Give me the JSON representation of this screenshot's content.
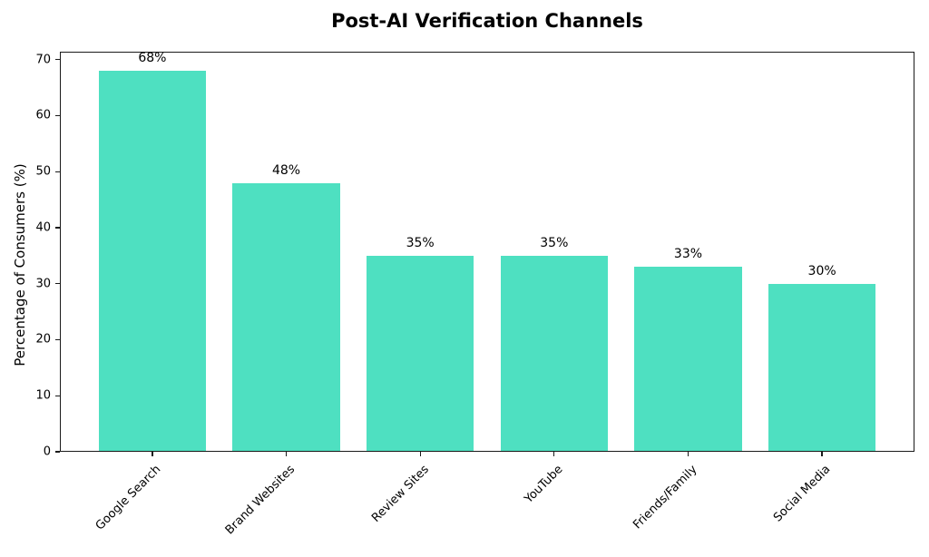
{
  "chart_data": {
    "type": "bar",
    "title": "Post-AI Verification Channels",
    "categories": [
      "Google Search",
      "Brand Websites",
      "Review Sites",
      "YouTube",
      "Friends/Family",
      "Social Media"
    ],
    "values": [
      68,
      48,
      35,
      35,
      33,
      30
    ],
    "value_labels": [
      "68%",
      "48%",
      "35%",
      "35%",
      "33%",
      "30%"
    ],
    "xlabel": "",
    "ylabel": "Percentage of Consumers (%)",
    "ylim": [
      0,
      71.4
    ],
    "yticks": [
      0,
      10,
      20,
      30,
      40,
      50,
      60,
      70
    ],
    "bar_color": "#4ee0c1",
    "bar_width_fraction": 0.8,
    "grid": false,
    "legend": null,
    "x_tick_rotation_deg": 45
  }
}
